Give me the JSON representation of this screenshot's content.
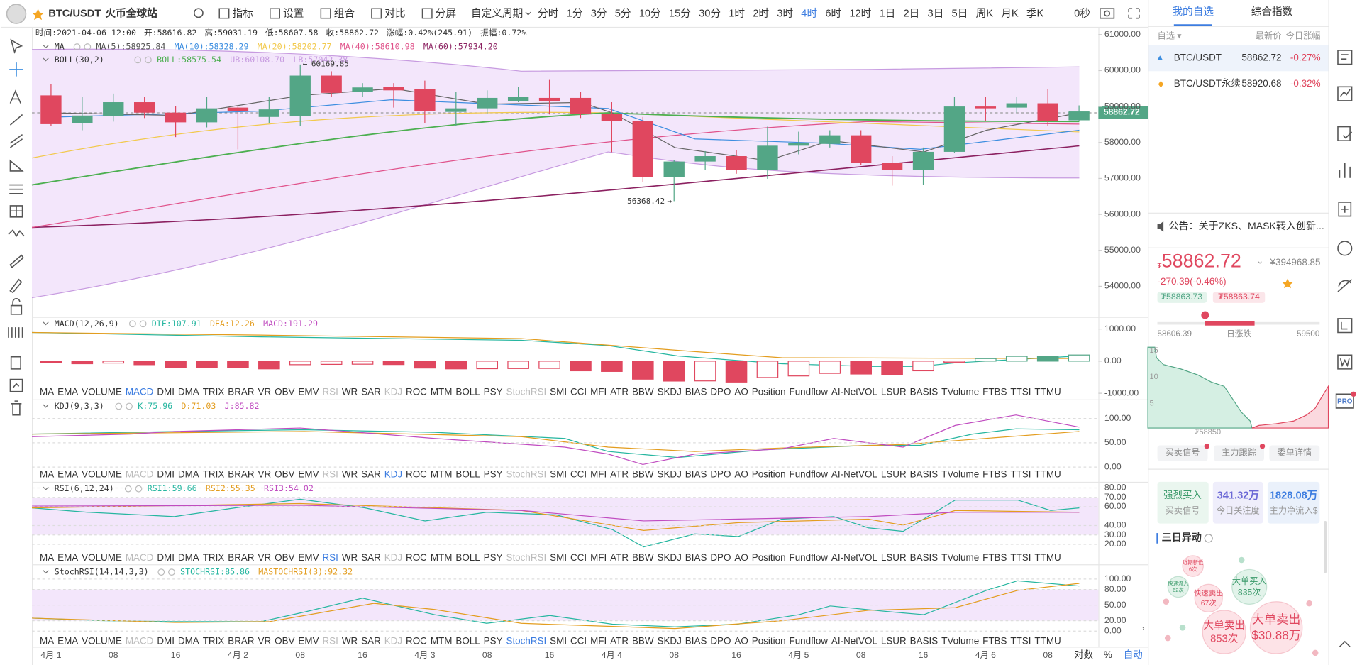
{
  "topbar": {
    "symbol": "BTC/USDT",
    "exchange": "火币全球站",
    "tools": [
      "指标",
      "设置",
      "组合",
      "对比",
      "分屏"
    ],
    "custom_period": "自定义周期",
    "periods": [
      "分时",
      "1分",
      "3分",
      "5分",
      "10分",
      "15分",
      "30分",
      "1时",
      "2时",
      "3时",
      "4时",
      "6时",
      "12时",
      "1日",
      "2日",
      "3日",
      "5日",
      "周K",
      "月K",
      "季K"
    ],
    "active_period": "4时",
    "countdown": "0秒"
  },
  "info": [
    "时间:2021-04-06 12:00",
    "开:58616.82",
    "高:59031.19",
    "低:58607.58",
    "收:58862.72",
    "涨幅:0.42%(245.91)",
    "振幅:0.72%"
  ],
  "ma": {
    "label": "MA",
    "items": [
      {
        "text": "MA(5):58925.84",
        "color": "#555555"
      },
      {
        "text": "MA(10):58328.29",
        "color": "#3d8ee0"
      },
      {
        "text": "MA(20):58202.77",
        "color": "#f2c94c"
      },
      {
        "text": "MA(40):58610.98",
        "color": "#e0528a"
      },
      {
        "text": "MA(60):57934.20",
        "color": "#8b2060"
      }
    ]
  },
  "boll": {
    "label": "BOLL(30,2)",
    "items": [
      {
        "text": "BOLL:58575.54",
        "color": "#4caf50"
      },
      {
        "text": "UB:60108.70",
        "color": "#c79be0"
      },
      {
        "text": "LB:57042.38",
        "color": "#c79be0"
      }
    ]
  },
  "chart": {
    "type": "candlestick",
    "open": [
      59310,
      58540,
      58730,
      59120,
      58830,
      58560,
      58970,
      58710,
      58730,
      59860,
      59410,
      59550,
      59480,
      58850,
      58950,
      59160,
      59240,
      59240,
      58800,
      58590,
      57040,
      57470,
      57620,
      57230,
      57910,
      57960,
      58200,
      57430,
      57230,
      57740,
      59000,
      58970,
      59090,
      58616.82
    ],
    "high": [
      59620,
      59260,
      59360,
      59260,
      59020,
      59260,
      59020,
      59260,
      60169.85,
      59980,
      59650,
      59650,
      59720,
      59410,
      59450,
      59550,
      59740,
      59410,
      59120,
      58710,
      57520,
      57760,
      57790,
      58440,
      58300,
      58340,
      58340,
      57620,
      57860,
      59260,
      59260,
      59260,
      59480,
      59031.19
    ],
    "low": [
      58460,
      58340,
      58580,
      58680,
      58150,
      58420,
      57810,
      58540,
      58460,
      59260,
      59260,
      58970,
      58540,
      58460,
      58800,
      59120,
      58780,
      58680,
      57730,
      56890,
      56368.42,
      57230,
      57130,
      56990,
      57670,
      57860,
      57370,
      56800,
      56820,
      57720,
      58590,
      58830,
      58460,
      58607.58
    ],
    "close": [
      58510,
      58750,
      59120,
      58830,
      58560,
      58950,
      58870,
      58920,
      59860,
      59380,
      59530,
      59450,
      58870,
      58950,
      59240,
      59260,
      59160,
      58800,
      58590,
      57040,
      57470,
      57620,
      57230,
      57910,
      57980,
      58200,
      57430,
      57230,
      57740,
      59000,
      58950,
      59090,
      58590,
      58862.72
    ],
    "up_color": "#53a686",
    "down_color": "#e0475f",
    "ylim": [
      53150,
      61190
    ],
    "yticks": [
      {
        "value": 61000,
        "label": "61000.00"
      },
      {
        "value": 60000,
        "label": "60000.00"
      },
      {
        "value": 59000,
        "label": "59000.00"
      },
      {
        "value": 58000,
        "label": "58000.00"
      },
      {
        "value": 57000,
        "label": "57000.00"
      },
      {
        "value": 56000,
        "label": "56000.00"
      },
      {
        "value": 55000,
        "label": "55000.00"
      },
      {
        "value": 54000,
        "label": "54000.00"
      }
    ],
    "x_labels": [
      "4月 1",
      "08",
      "16",
      "4月 2",
      "08",
      "16",
      "4月 3",
      "08",
      "16",
      "4月 4",
      "08",
      "16",
      "4月 5",
      "08",
      "16",
      "4月 6",
      "08"
    ],
    "axis_options": [
      "对数",
      "%",
      "自动"
    ]
  },
  "macd": {
    "title": "MACD(12,26,9)",
    "items": [
      {
        "text": "DIF:107.91",
        "color": "#26b6a0"
      },
      {
        "text": "DEA:12.26",
        "color": "#e39d1f"
      },
      {
        "text": "MACD:191.29",
        "color": "#c04cc0"
      }
    ],
    "values": [
      -50,
      -80,
      -60,
      -110,
      -190,
      -190,
      -195,
      -240,
      -110,
      -100,
      -95,
      -105,
      -215,
      -240,
      -235,
      -230,
      -225,
      -300,
      -320,
      -560,
      -620,
      -615,
      -650,
      -510,
      -460,
      -380,
      -400,
      -420,
      -300,
      -40,
      80,
      150,
      140,
      191.29
    ],
    "ylim": [
      -1000,
      1000
    ],
    "yticks": [
      {
        "value": 1000,
        "label": "1000.00"
      },
      {
        "value": 0,
        "label": "0.00"
      },
      {
        "value": -1000,
        "label": "-1000.00"
      }
    ]
  },
  "kdj": {
    "title": "KDJ(9,3,3)",
    "items": [
      {
        "text": "K:75.96",
        "color": "#26b6a0"
      },
      {
        "text": "D:71.03",
        "color": "#e39d1f"
      },
      {
        "text": "J:85.82",
        "color": "#c04cc0"
      }
    ],
    "ylim": [
      0,
      100
    ],
    "yticks": [
      {
        "value": 100,
        "label": "100.00"
      },
      {
        "value": 50,
        "label": "50.00"
      },
      {
        "value": 0,
        "label": "0.00"
      }
    ]
  },
  "rsi": {
    "title": "RSI(6,12,24)",
    "items": [
      {
        "text": "RSI1:59.66",
        "color": "#26b6a0"
      },
      {
        "text": "RSI2:55.35",
        "color": "#e39d1f"
      },
      {
        "text": "RSI3:54.02",
        "color": "#c04cc0"
      }
    ],
    "ylim": [
      20,
      80
    ],
    "yticks": [
      {
        "value": 80,
        "label": "80.00"
      },
      {
        "value": 70,
        "label": "70.00"
      },
      {
        "value": 60,
        "label": "60.00"
      },
      {
        "value": 40,
        "label": "40.00"
      },
      {
        "value": 30,
        "label": "30.00"
      },
      {
        "value": 20,
        "label": "20.00"
      }
    ]
  },
  "stochrsi": {
    "title": "StochRSI(14,14,3,3)",
    "items": [
      {
        "text": "STOCHRSI:85.86",
        "color": "#26b6a0"
      },
      {
        "text": "MASTOCHRSI(3):92.32",
        "color": "#e39d1f"
      }
    ],
    "ylim": [
      0,
      100
    ],
    "yticks": [
      {
        "value": 100,
        "label": "100.00"
      },
      {
        "value": 80,
        "label": "80.00"
      },
      {
        "value": 50,
        "label": "50.00"
      },
      {
        "value": 20,
        "label": "20.00"
      },
      {
        "value": 0,
        "label": "0.00"
      }
    ]
  },
  "indicators": {
    "names": [
      "MA",
      "EMA",
      "VOLUME",
      "MACD",
      "DMI",
      "DMA",
      "TRIX",
      "BRAR",
      "VR",
      "OBV",
      "EMV",
      "RSI",
      "WR",
      "SAR",
      "KDJ",
      "ROC",
      "MTM",
      "BOLL",
      "PSY",
      "StochRSI",
      "SMI",
      "CCI",
      "MFI",
      "ATR",
      "BBW",
      "SKDJ",
      "BIAS",
      "DPO",
      "AO",
      "Position",
      "Fundflow",
      "AI-NetVOL",
      "LSUR",
      "BASIS",
      "TVolume",
      "FTBS",
      "TTSI",
      "TTMU"
    ],
    "shown": [
      "MACD",
      "KDJ",
      "RSI",
      "StochRSI"
    ]
  },
  "side": {
    "tabs": [
      "我的自选",
      "综合指数"
    ],
    "head": [
      "自选 ▾",
      "最新价",
      "今日涨幅"
    ],
    "rows": [
      {
        "name": "BTC/USDT",
        "price": "58862.72",
        "change": "-0.27%"
      },
      {
        "name": "BTC/USDT永续",
        "price": "58920.68",
        "change": "-0.32%"
      }
    ],
    "notice": "公告：关于ZKS、MASK转入创新...",
    "price": "58862.72",
    "cny": "¥394968.85",
    "change": "-270.39(-0.46%)",
    "bid": "₮58863.73",
    "ask": "₮58863.74",
    "range_low": "58606.39",
    "range_label": "日涨跌",
    "range_high": "59500",
    "depth_ticks": [
      "15",
      "10",
      "5"
    ],
    "depth_price": "₮58850",
    "buttons": [
      "买卖信号",
      "主力跟踪",
      "委单详情"
    ],
    "cards": [
      {
        "value": "强烈买入",
        "label": "买卖信号"
      },
      {
        "value": "341.32万",
        "label": "今日关注度"
      },
      {
        "value": "1828.08万",
        "label": "主力净流入$"
      }
    ],
    "section": "三日异动",
    "bubbles": [
      {
        "t": "大单卖出",
        "n": "$30.88万"
      },
      {
        "t": "大单卖出",
        "n": "853次"
      },
      {
        "t": "大单买入",
        "n": "835次"
      },
      {
        "t": "快速卖出",
        "n": "67次"
      },
      {
        "t": "近期新低",
        "n": "6次"
      },
      {
        "t": "快速流入",
        "n": "62次"
      }
    ],
    "pro": "PRO"
  }
}
